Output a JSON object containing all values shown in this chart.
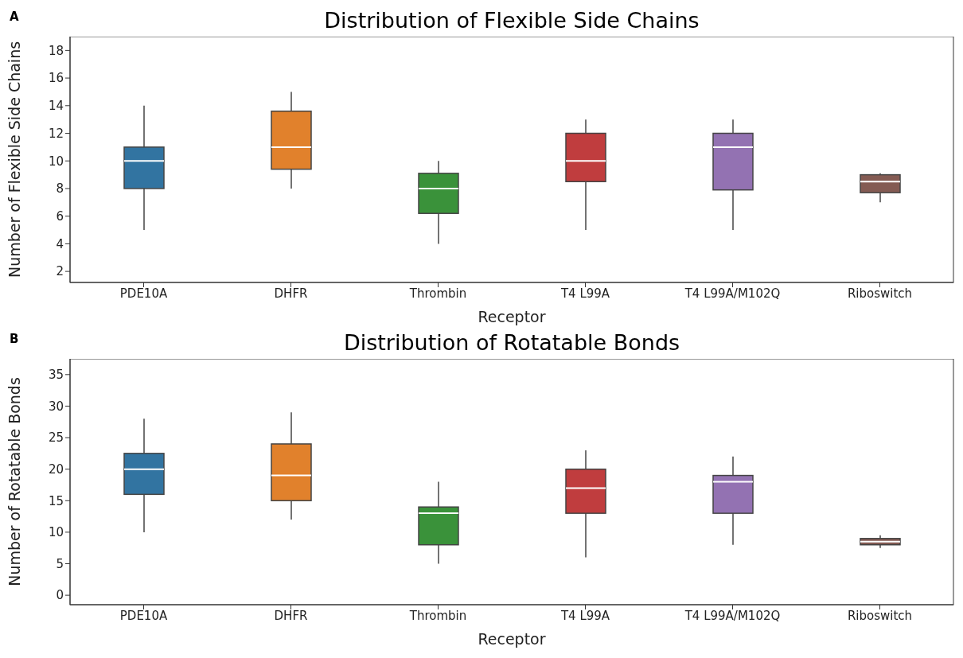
{
  "chart_data": [
    {
      "type": "box",
      "title": "Distribution of Flexible Side Chains",
      "xlabel": "Receptor",
      "ylabel": "Number of Flexible Side Chains",
      "annotations": [
        "A"
      ],
      "categories": [
        "PDE10A",
        "DHFR",
        "Thrombin",
        "T4 L99A",
        "T4 L99A/M102Q",
        "Riboswitch"
      ],
      "colors": [
        "#3274a1",
        "#e1812c",
        "#3a923a",
        "#c03d3e",
        "#9372b2",
        "#845b53"
      ],
      "boxes": [
        {
          "low": 5,
          "q1": 8,
          "median": 10,
          "q3": 11,
          "high": 14
        },
        {
          "low": 8,
          "q1": 9.4,
          "median": 11,
          "q3": 13.6,
          "high": 15
        },
        {
          "low": 4,
          "q1": 6.2,
          "median": 8,
          "q3": 9.1,
          "high": 10
        },
        {
          "low": 5,
          "q1": 8.5,
          "median": 10,
          "q3": 12,
          "high": 13
        },
        {
          "low": 5,
          "q1": 7.9,
          "median": 11,
          "q3": 12,
          "high": 13
        },
        {
          "low": 7,
          "q1": 7.7,
          "median": 8.5,
          "q3": 9,
          "high": 9.1
        }
      ],
      "ylim": [
        1.2,
        19
      ],
      "yticks": [
        2,
        4,
        6,
        8,
        10,
        12,
        14,
        16,
        18
      ],
      "grid": false,
      "legend": false
    },
    {
      "type": "box",
      "title": "Distribution of Rotatable Bonds",
      "xlabel": "Receptor",
      "ylabel": "Number of Rotatable Bonds",
      "annotations": [
        "B"
      ],
      "categories": [
        "PDE10A",
        "DHFR",
        "Thrombin",
        "T4 L99A",
        "T4 L99A/M102Q",
        "Riboswitch"
      ],
      "colors": [
        "#3274a1",
        "#e1812c",
        "#3a923a",
        "#c03d3e",
        "#9372b2",
        "#845b53"
      ],
      "boxes": [
        {
          "low": 10,
          "q1": 16,
          "median": 20,
          "q3": 22.5,
          "high": 28
        },
        {
          "low": 12,
          "q1": 15,
          "median": 19,
          "q3": 24,
          "high": 29
        },
        {
          "low": 5,
          "q1": 8,
          "median": 13,
          "q3": 14,
          "high": 18
        },
        {
          "low": 6,
          "q1": 13,
          "median": 17,
          "q3": 20,
          "high": 23
        },
        {
          "low": 8,
          "q1": 13,
          "median": 18,
          "q3": 19,
          "high": 22
        },
        {
          "low": 7.5,
          "q1": 8,
          "median": 8.5,
          "q3": 9,
          "high": 9.5
        }
      ],
      "ylim": [
        -1.5,
        37.5
      ],
      "yticks": [
        0,
        5,
        10,
        15,
        20,
        25,
        30,
        35
      ],
      "grid": false,
      "legend": false
    }
  ]
}
